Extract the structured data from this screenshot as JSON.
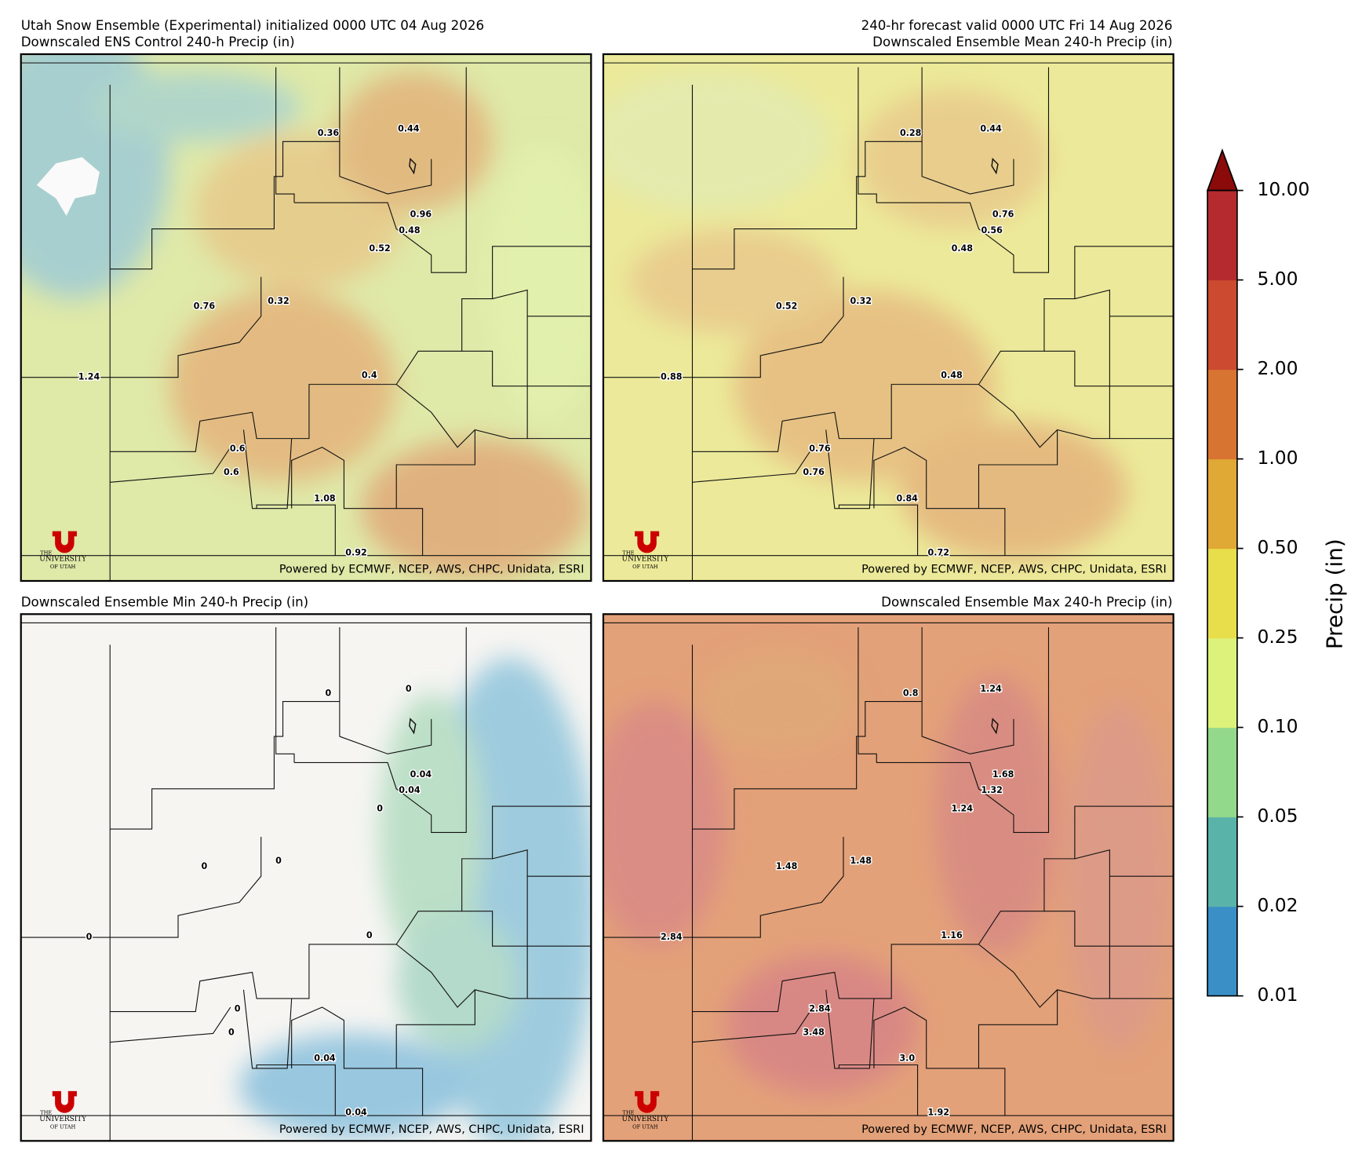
{
  "header": {
    "title_left": "Utah Snow Ensemble (Experimental) initialized 0000 UTC 04 Aug 2026",
    "title_right": "240-hr forecast valid 0000 UTC Fri 14 Aug 2026"
  },
  "credit": "Powered by ECMWF, NCEP, AWS, CHPC, Unidata, ESRI",
  "logo": {
    "top": "THE",
    "middle": "UNIVERSITY",
    "bottom": "OF UTAH"
  },
  "panels": [
    {
      "title": "Downscaled ENS Control 240-h Precip (in)",
      "labels": [
        "0.36",
        "0.44",
        "0.96",
        "0.48",
        "0.52",
        "0.76",
        "0.32",
        "1.24",
        "0.4",
        "0.6",
        "0.6",
        "1.08",
        "0.92"
      ]
    },
    {
      "title": "Downscaled Ensemble Mean 240-h Precip (in)",
      "labels": [
        "0.28",
        "0.44",
        "0.76",
        "0.56",
        "0.48",
        "0.52",
        "0.32",
        "0.88",
        "0.48",
        "0.76",
        "0.76",
        "0.84",
        "0.72"
      ]
    },
    {
      "title": "Downscaled Ensemble Min 240-h Precip (in)",
      "labels": [
        "0",
        "0",
        "0.04",
        "0.04",
        "0",
        "0",
        "0",
        "0",
        "0",
        "0",
        "0",
        "0.04",
        "0.04"
      ]
    },
    {
      "title": "Downscaled Ensemble Max 240-h Precip (in)",
      "labels": [
        "0.8",
        "1.24",
        "1.68",
        "1.32",
        "1.24",
        "1.48",
        "1.48",
        "2.84",
        "1.16",
        "2.84",
        "3.48",
        "3.0",
        "1.92"
      ]
    }
  ],
  "colorbar": {
    "label": "Precip (in)",
    "ticks": [
      "0.01",
      "0.02",
      "0.05",
      "0.10",
      "0.25",
      "0.50",
      "1.00",
      "2.00",
      "5.00",
      "10.00"
    ],
    "colors": [
      "#3a8fc7",
      "#5ab3a8",
      "#93d98b",
      "#dcf27a",
      "#e8dd4a",
      "#e0a834",
      "#d87432",
      "#cb4a30",
      "#b42a2f"
    ],
    "extend_color": "#8b0b0b"
  }
}
